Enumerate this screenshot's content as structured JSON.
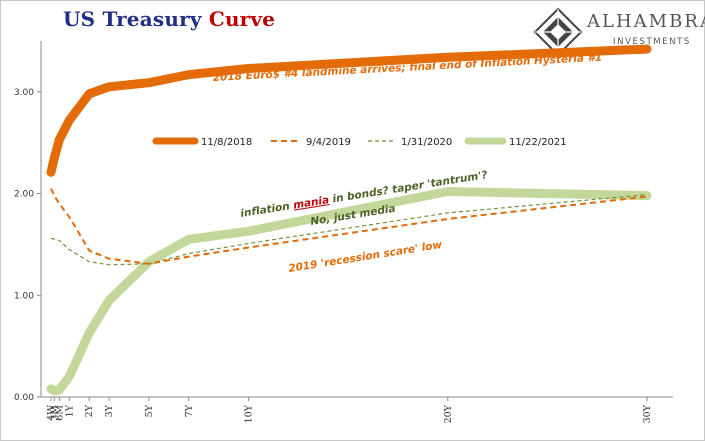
{
  "title": {
    "part1": "US Treasury",
    "part2": "Curve"
  },
  "logo": {
    "name": "ALHAMBRA",
    "tagline": "INVESTMENTS"
  },
  "chart_data": {
    "type": "line",
    "title": "US Treasury Curve",
    "xlabel": "",
    "ylabel": "",
    "x_ticks": [
      "4W",
      "3M",
      "6M",
      "1Y",
      "2Y",
      "3Y",
      "5Y",
      "7Y",
      "10Y",
      "20Y",
      "30Y"
    ],
    "x_maturity_years": [
      0.0833,
      0.25,
      0.5,
      1,
      2,
      3,
      5,
      7,
      10,
      20,
      30
    ],
    "ylim": [
      0,
      3.5
    ],
    "y_ticks": [
      "0.00",
      "1.00",
      "2.00",
      "3.00"
    ],
    "y_tick_values": [
      0,
      1,
      2,
      3
    ],
    "grid": false,
    "legend_position": "top-center",
    "series": [
      {
        "name": "11/8/2018",
        "color": "#e36c09",
        "style": "solid-thick",
        "values": [
          2.21,
          2.35,
          2.53,
          2.72,
          2.98,
          3.05,
          3.09,
          3.17,
          3.23,
          3.34,
          3.42
        ]
      },
      {
        "name": "9/4/2019",
        "color": "#e36c09",
        "style": "dashed",
        "values": [
          2.05,
          1.98,
          1.9,
          1.77,
          1.44,
          1.36,
          1.31,
          1.38,
          1.47,
          1.75,
          1.97
        ]
      },
      {
        "name": "1/31/2020",
        "color": "#76923c",
        "style": "dashed-thin",
        "values": [
          1.56,
          1.55,
          1.54,
          1.45,
          1.33,
          1.3,
          1.31,
          1.41,
          1.51,
          1.81,
          1.99
        ]
      },
      {
        "name": "11/22/2021",
        "color": "#c4d79b",
        "style": "solid-thick",
        "values": [
          0.08,
          0.06,
          0.07,
          0.2,
          0.63,
          0.95,
          1.33,
          1.55,
          1.63,
          2.02,
          1.98
        ]
      }
    ],
    "annotations": [
      {
        "text": "2018 Euro$ #4 landmine arrives; final end of Inflation Hysteria #1",
        "color": "#e36c09"
      },
      {
        "text_before": "inflation ",
        "text_highlight": "mania",
        "text_after": " in bonds? taper 'tantrum'?",
        "color": "#4f6228",
        "highlight_color": "#c00000"
      },
      {
        "text": "No, just media",
        "color": "#4f6228"
      },
      {
        "text": "2019 'recession scare' low",
        "color": "#e36c09"
      }
    ]
  }
}
